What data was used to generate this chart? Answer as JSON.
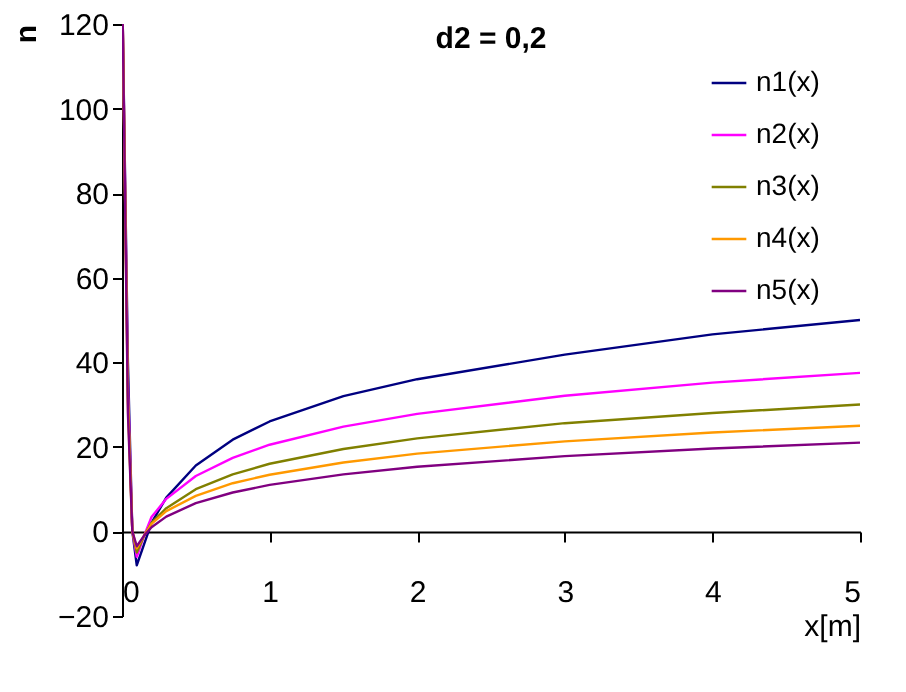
{
  "chart_data": {
    "type": "line",
    "title": "d2 = 0,2",
    "xlabel": "x[m]",
    "ylabel": "n",
    "xlim": [
      0,
      5
    ],
    "xticks": [
      0,
      1,
      2,
      3,
      4,
      5
    ],
    "ylim": [
      -20,
      120
    ],
    "yticks": [
      -20,
      0,
      20,
      40,
      60,
      80,
      100,
      120
    ],
    "grid": false,
    "legend": "top right",
    "marker": "none",
    "line_style": "solid",
    "series": [
      {
        "name": "n1(x)",
        "color": "#000080",
        "x": [
          0.005,
          0.04,
          0.07,
          0.1,
          0.15,
          0.2,
          0.3,
          0.5,
          0.75,
          1,
          1.5,
          2,
          3,
          4,
          5
        ],
        "values": [
          120,
          40,
          0,
          -8,
          -3,
          2,
          8,
          15.6,
          21.7,
          26,
          32,
          36,
          41.8,
          46.6,
          50
        ]
      },
      {
        "name": "n2(x)",
        "color": "#ff00ff",
        "x": [
          0.005,
          0.04,
          0.07,
          0.1,
          0.15,
          0.2,
          0.3,
          0.5,
          0.75,
          1,
          1.5,
          2,
          3,
          4,
          5
        ],
        "values": [
          120,
          35,
          0,
          -6,
          -1,
          3.4,
          7.7,
          13.1,
          17.4,
          20.5,
          24.8,
          27.8,
          32.1,
          35.2,
          37.5
        ]
      },
      {
        "name": "n3(x)",
        "color": "#808000",
        "x": [
          0.005,
          0.04,
          0.07,
          0.1,
          0.15,
          0.2,
          0.3,
          0.5,
          0.75,
          1,
          1.5,
          2,
          3,
          4,
          5
        ],
        "values": [
          120,
          32,
          0,
          -5,
          -1,
          2,
          5.5,
          10,
          13.5,
          16,
          19.5,
          22,
          25.6,
          28,
          30
        ]
      },
      {
        "name": "n4(x)",
        "color": "#ff9900",
        "x": [
          0.005,
          0.04,
          0.07,
          0.1,
          0.15,
          0.2,
          0.3,
          0.5,
          0.75,
          1,
          1.5,
          2,
          3,
          4,
          5
        ],
        "values": [
          120,
          30,
          0,
          -4,
          -1,
          1.8,
          4.8,
          8.4,
          11.4,
          13.4,
          16.3,
          18.4,
          21.3,
          23.4,
          25
        ]
      },
      {
        "name": "n5(x)",
        "color": "#800080",
        "x": [
          0.005,
          0.04,
          0.07,
          0.1,
          0.15,
          0.2,
          0.3,
          0.5,
          0.75,
          1,
          1.5,
          2,
          3,
          4,
          5
        ],
        "values": [
          120,
          28,
          0,
          -3.5,
          -1,
          1,
          3.5,
          6.7,
          9.2,
          11,
          13.5,
          15.3,
          17.8,
          19.6,
          21
        ]
      }
    ]
  }
}
